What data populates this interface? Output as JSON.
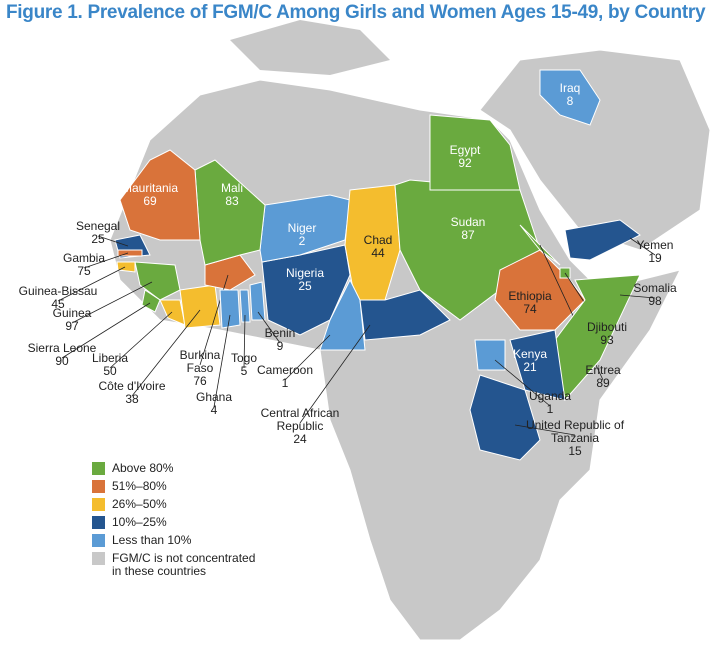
{
  "title": "Figure 1. Prevalence of FGM/C Among Girls and Women Ages 15-49, by Country",
  "countries": [
    {
      "name": "Senegal",
      "value": 25,
      "color": "#24558f"
    },
    {
      "name": "Gambia",
      "value": 75,
      "color": "#d9733a"
    },
    {
      "name": "Guinea-Bissau",
      "value": 45,
      "color": "#f4bd2e"
    },
    {
      "name": "Guinea",
      "value": 97,
      "color": "#6aaa3f"
    },
    {
      "name": "Sierra Leone",
      "value": 90,
      "color": "#6aaa3f"
    },
    {
      "name": "Liberia",
      "value": 50,
      "color": "#f4bd2e"
    },
    {
      "name": "Côte d'Ivoire",
      "value": 38,
      "color": "#f4bd2e"
    },
    {
      "name": "Burkina Faso",
      "value": 76,
      "color": "#d9733a"
    },
    {
      "name": "Ghana",
      "value": 4,
      "color": "#5b9bd5"
    },
    {
      "name": "Togo",
      "value": 5,
      "color": "#5b9bd5"
    },
    {
      "name": "Benin",
      "value": 9,
      "color": "#5b9bd5"
    },
    {
      "name": "Nigeria",
      "value": 25,
      "color": "#24558f"
    },
    {
      "name": "Niger",
      "value": 2,
      "color": "#5b9bd5"
    },
    {
      "name": "Mali",
      "value": 83,
      "color": "#6aaa3f"
    },
    {
      "name": "Mauritania",
      "value": 69,
      "color": "#d9733a"
    },
    {
      "name": "Chad",
      "value": 44,
      "color": "#f4bd2e"
    },
    {
      "name": "Cameroon",
      "value": 1,
      "color": "#5b9bd5"
    },
    {
      "name": "Central African Republic",
      "value": 24,
      "color": "#24558f"
    },
    {
      "name": "Sudan",
      "value": 87,
      "color": "#6aaa3f"
    },
    {
      "name": "Egypt",
      "value": 92,
      "color": "#6aaa3f"
    },
    {
      "name": "Ethiopia",
      "value": 74,
      "color": "#d9733a"
    },
    {
      "name": "Eritrea",
      "value": 89,
      "color": "#6aaa3f"
    },
    {
      "name": "Djibouti",
      "value": 93,
      "color": "#6aaa3f"
    },
    {
      "name": "Somalia",
      "value": 98,
      "color": "#6aaa3f"
    },
    {
      "name": "Yemen",
      "value": 19,
      "color": "#24558f"
    },
    {
      "name": "Kenya",
      "value": 21,
      "color": "#24558f"
    },
    {
      "name": "Uganda",
      "value": 1,
      "color": "#5b9bd5"
    },
    {
      "name": "United Republic of Tanzania",
      "value": 15,
      "color": "#24558f"
    },
    {
      "name": "Iraq",
      "value": 8,
      "color": "#5b9bd5"
    }
  ],
  "legend": [
    {
      "label": "Above 80%",
      "color": "#6aaa3f"
    },
    {
      "label": "51%–80%",
      "color": "#d9733a"
    },
    {
      "label": "26%–50%",
      "color": "#f4bd2e"
    },
    {
      "label": "10%–25%",
      "color": "#24558f"
    },
    {
      "label": "Less than 10%",
      "color": "#5b9bd5"
    },
    {
      "label": "FGM/C is not concentrated in these countries",
      "color": "#c8c8c8"
    }
  ]
}
